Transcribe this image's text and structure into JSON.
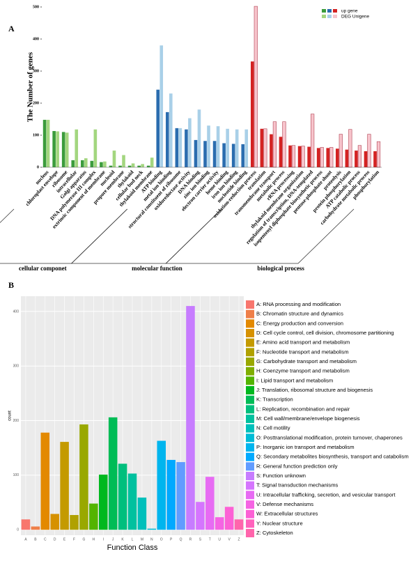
{
  "chart_data": [
    {
      "type": "bar",
      "panel": "A",
      "ylabel": "The Number of genes",
      "ylim": [
        0,
        500
      ],
      "yticks": [
        0,
        100,
        200,
        300,
        400,
        500
      ],
      "groups": [
        {
          "name": "cellular componet",
          "categories": [
            "nucleus",
            "chloroplast envelope",
            "ribosome",
            "intracellular",
            "Golgi apparatus",
            "DNA polymerase III complex",
            "extrinsic component of membrane",
            "nucleoid",
            "propore membrane",
            "thylakoid",
            "cellular bud neck",
            "thylakoid membrane"
          ],
          "series": [
            {
              "name": "up gene",
              "color": "#3c9c3c",
              "values": [
                148,
                113,
                110,
                22,
                22,
                20,
                16,
                5,
                5,
                5,
                5,
                5
              ]
            },
            {
              "name": "DEG Unigene",
              "color": "#a3d67f",
              "values": [
                148,
                112,
                108,
                118,
                28,
                118,
                18,
                52,
                38,
                12,
                10,
                30
              ]
            }
          ]
        },
        {
          "name": "molecular function",
          "categories": [
            "ATP binding",
            "metal ion binding",
            "structural constituent of ribosome",
            "oxidoreductase activity",
            "DNA binding",
            "zinc ion binding",
            "electron carrier activity",
            "heme binding",
            "iron ion binding",
            "nucleotide binding"
          ],
          "series": [
            {
              "name": "up gene",
              "color": "#2b6daf",
              "values": [
                242,
                172,
                122,
                118,
                85,
                82,
                82,
                75,
                73,
                72
              ]
            },
            {
              "name": "DEG Unigene",
              "color": "#a9d0e8",
              "values": [
                380,
                230,
                122,
                153,
                180,
                130,
                128,
                120,
                118,
                118
              ]
            }
          ]
        },
        {
          "name": "biological process",
          "categories": [
            "oxidation-reduction process",
            "translation",
            "transmembrane transport",
            "metabolic process",
            "rRNA processing",
            "thylakoid membrane organization",
            "regulation of transcription, DNA-templated",
            "isopentenyl diphosphate biosynthetic process",
            "pentose-phosphate shunt",
            "proteolysis",
            "protein phosphorylation",
            "ATP catabolic process",
            "carbohydrate metabolic process",
            "phosphorylation"
          ],
          "series": [
            {
              "name": "up gene",
              "color": "#d42222",
              "values": [
                330,
                120,
                103,
                95,
                68,
                66,
                64,
                60,
                60,
                58,
                55,
                52,
                50,
                50
              ]
            },
            {
              "name": "DEG Unigene",
              "color": "#f7c4cc",
              "values": [
                502,
                120,
                142,
                142,
                68,
                66,
                166,
                62,
                62,
                103,
                118,
                68,
                103,
                80
              ]
            }
          ]
        }
      ]
    },
    {
      "type": "bar",
      "panel": "B",
      "xlabel": "Function Class",
      "ylabel": "count",
      "ylim": [
        -10,
        428
      ],
      "yticks": [
        0,
        100,
        200,
        300,
        400
      ],
      "categories": [
        "A",
        "B",
        "C",
        "D",
        "E",
        "F",
        "G",
        "H",
        "I",
        "J",
        "K",
        "L",
        "M",
        "N",
        "O",
        "P",
        "Q",
        "R",
        "S",
        "T",
        "U",
        "V",
        "Z"
      ],
      "values": [
        19,
        6,
        178,
        29,
        161,
        27,
        193,
        48,
        101,
        206,
        121,
        103,
        59,
        2,
        163,
        128,
        124,
        410,
        51,
        97,
        23,
        42,
        19
      ],
      "colors": [
        "#f8766d",
        "#ef7f49",
        "#e38900",
        "#d69100",
        "#c49a00",
        "#b0a100",
        "#99a800",
        "#53b400",
        "#00b81f",
        "#00bc56",
        "#00bf7d",
        "#00c19f",
        "#00c0bb",
        "#00bcd6",
        "#00b5ee",
        "#00a9ff",
        "#619cff",
        "#c77cff",
        "#d575fe",
        "#e76bf3",
        "#f564e3",
        "#fc61d5",
        "#ff65ac"
      ],
      "legend": [
        "A: RNA processing and modification",
        "B: Chromatin structure and dynamics",
        "C: Energy production and conversion",
        "D: Cell cycle control, cell division, chromosome partitioning",
        "E: Amino acid transport and metabolism",
        "F: Nucleotide transport and metabolism",
        "G: Carbohydrate transport and metabolism",
        "H: Coenzyme transport and metabolism",
        "I: Lipid transport and metabolism",
        "J: Translation, ribosomal structure and biogenesis",
        "K: Transcription",
        "L: Replication, recombination and repair",
        "M: Cell wall/membrane/envelope biogenesis",
        "N: Cell motility",
        "O: Posttranslational modification, protein turnover, chaperones",
        "P: Inorganic ion transport and metabolism",
        "Q: Secondary metabolites biosynthesis, transport and catabolism",
        "R: General function prediction only",
        "S: Function unknown",
        "T: Signal transduction mechanisms",
        "U: Intracellular trafficking, secretion, and vesicular transport",
        "V: Defense mechanisms",
        "W: Extracellular structures",
        "Y: Nuclear structure",
        "Z: Cytoskeleton"
      ],
      "legend_colors": [
        "#f8766d",
        "#ef7f49",
        "#e38900",
        "#d69100",
        "#c49a00",
        "#b0a100",
        "#99a800",
        "#7fae00",
        "#53b400",
        "#00b81f",
        "#00bc56",
        "#00bf7d",
        "#00c19f",
        "#00c0bb",
        "#00bcd6",
        "#00b5ee",
        "#00a9ff",
        "#619cff",
        "#c77cff",
        "#d575fe",
        "#e76bf3",
        "#f564e3",
        "#fc61d5",
        "#ff62bc",
        "#ff65ac"
      ]
    }
  ]
}
